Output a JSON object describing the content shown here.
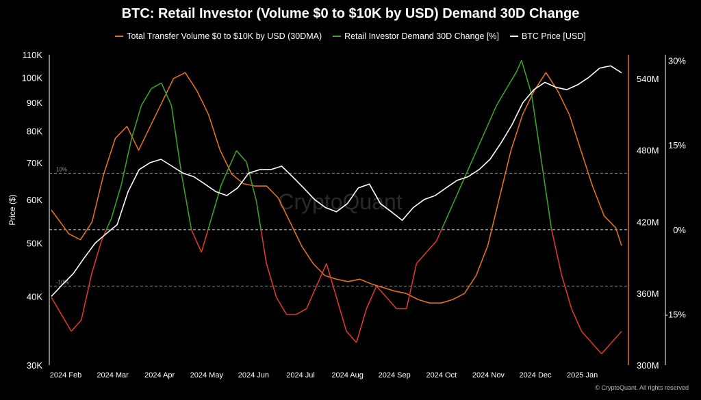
{
  "chart_data": {
    "type": "line",
    "title": "BTC: Retail Investor (Volume $0 to $10K by USD) Demand 30D Change",
    "ylabel": "Price ($)",
    "watermark": "CryptoQuant",
    "copyright": "© CryptoQuant. All rights reserved",
    "x_ticks": [
      "2024 Feb",
      "2024 Mar",
      "2024 Apr",
      "2024 May",
      "2024 Jun",
      "2024 Jul",
      "2024 Aug",
      "2024 Sep",
      "2024 Oct",
      "2024 Nov",
      "2024 Dec",
      "2025 Jan"
    ],
    "y_left_ticks": [
      "110K",
      "100K",
      "90K",
      "80K",
      "70K",
      "60K",
      "50K",
      "40K",
      "30K"
    ],
    "y_volume_ticks": [
      "540M",
      "480M",
      "420M",
      "360M",
      "300M"
    ],
    "y_right_ticks": [
      "30%",
      "15%",
      "0%",
      "-15%"
    ],
    "ref_labels": [
      "10%",
      "-10%"
    ],
    "ylim_left": [
      30000,
      110000
    ],
    "ylim_volume": [
      300000000,
      560000000
    ],
    "ylim_right": [
      -24,
      31
    ],
    "log_scale_left": true,
    "grid": false,
    "legend_position": "top-center",
    "series": [
      {
        "name": "Total Transfer Volume $0 to $10K by USD (30DMA)",
        "axis": "volume",
        "color": "#e07020",
        "values": [
          [
            0,
            430
          ],
          [
            3,
            420
          ],
          [
            6,
            410
          ],
          [
            10,
            405
          ],
          [
            14,
            420
          ],
          [
            18,
            460
          ],
          [
            22,
            490
          ],
          [
            26,
            500
          ],
          [
            30,
            480
          ],
          [
            34,
            500
          ],
          [
            38,
            520
          ],
          [
            42,
            540
          ],
          [
            46,
            545
          ],
          [
            50,
            530
          ],
          [
            54,
            510
          ],
          [
            58,
            480
          ],
          [
            62,
            460
          ],
          [
            66,
            452
          ],
          [
            70,
            450
          ],
          [
            74,
            450
          ],
          [
            78,
            440
          ],
          [
            82,
            420
          ],
          [
            86,
            400
          ],
          [
            90,
            385
          ],
          [
            94,
            375
          ],
          [
            98,
            372
          ],
          [
            102,
            370
          ],
          [
            106,
            372
          ],
          [
            110,
            368
          ],
          [
            114,
            365
          ],
          [
            118,
            362
          ],
          [
            122,
            360
          ],
          [
            126,
            355
          ],
          [
            130,
            352
          ],
          [
            134,
            352
          ],
          [
            138,
            355
          ],
          [
            142,
            360
          ],
          [
            146,
            375
          ],
          [
            150,
            400
          ],
          [
            154,
            440
          ],
          [
            158,
            480
          ],
          [
            162,
            510
          ],
          [
            166,
            530
          ],
          [
            170,
            545
          ],
          [
            174,
            530
          ],
          [
            178,
            510
          ],
          [
            182,
            480
          ],
          [
            186,
            450
          ],
          [
            190,
            425
          ],
          [
            194,
            415
          ],
          [
            196,
            400
          ]
        ]
      },
      {
        "name": "Retail Investor Demand 30D Change [%]",
        "axis": "right",
        "color_positive": "#3da02a",
        "color_negative": "#d83a2a",
        "values": [
          [
            0,
            -12
          ],
          [
            4,
            -15
          ],
          [
            8,
            -18
          ],
          [
            12,
            -16
          ],
          [
            16,
            -8
          ],
          [
            20,
            -2
          ],
          [
            24,
            2
          ],
          [
            28,
            8
          ],
          [
            32,
            16
          ],
          [
            36,
            22
          ],
          [
            40,
            25
          ],
          [
            44,
            26
          ],
          [
            48,
            22
          ],
          [
            52,
            10
          ],
          [
            56,
            0
          ],
          [
            60,
            -4
          ],
          [
            64,
            2
          ],
          [
            68,
            8
          ],
          [
            72,
            12
          ],
          [
            74,
            14
          ],
          [
            78,
            12
          ],
          [
            82,
            5
          ],
          [
            86,
            -6
          ],
          [
            90,
            -12
          ],
          [
            94,
            -15
          ],
          [
            98,
            -15
          ],
          [
            102,
            -14
          ],
          [
            106,
            -10
          ],
          [
            110,
            -6
          ],
          [
            114,
            -12
          ],
          [
            118,
            -18
          ],
          [
            122,
            -20
          ],
          [
            126,
            -14
          ],
          [
            130,
            -10
          ],
          [
            134,
            -12
          ],
          [
            138,
            -14
          ],
          [
            142,
            -14
          ],
          [
            146,
            -6
          ],
          [
            150,
            -4
          ],
          [
            154,
            -2
          ],
          [
            158,
            2
          ],
          [
            162,
            6
          ],
          [
            166,
            10
          ],
          [
            170,
            14
          ],
          [
            174,
            18
          ],
          [
            178,
            22
          ],
          [
            182,
            25
          ],
          [
            186,
            28
          ],
          [
            188,
            30
          ],
          [
            192,
            24
          ],
          [
            196,
            12
          ],
          [
            200,
            0
          ],
          [
            204,
            -8
          ],
          [
            208,
            -14
          ],
          [
            212,
            -18
          ],
          [
            216,
            -20
          ],
          [
            220,
            -22
          ],
          [
            224,
            -20
          ],
          [
            228,
            -18
          ]
        ]
      },
      {
        "name": "BTC Price [USD]",
        "axis": "left",
        "color": "#ffffff",
        "values": [
          [
            0,
            40000
          ],
          [
            3,
            42000
          ],
          [
            6,
            44000
          ],
          [
            9,
            47000
          ],
          [
            12,
            50000
          ],
          [
            15,
            52000
          ],
          [
            18,
            54000
          ],
          [
            21,
            62000
          ],
          [
            24,
            68000
          ],
          [
            27,
            70000
          ],
          [
            30,
            71000
          ],
          [
            33,
            69000
          ],
          [
            36,
            67000
          ],
          [
            39,
            66000
          ],
          [
            42,
            64000
          ],
          [
            45,
            62000
          ],
          [
            48,
            61000
          ],
          [
            51,
            63000
          ],
          [
            54,
            67000
          ],
          [
            57,
            68000
          ],
          [
            60,
            68000
          ],
          [
            63,
            69000
          ],
          [
            66,
            66000
          ],
          [
            69,
            63000
          ],
          [
            72,
            60000
          ],
          [
            75,
            58000
          ],
          [
            78,
            57000
          ],
          [
            81,
            59000
          ],
          [
            84,
            63000
          ],
          [
            87,
            64000
          ],
          [
            90,
            59000
          ],
          [
            93,
            57000
          ],
          [
            96,
            55000
          ],
          [
            99,
            58000
          ],
          [
            102,
            60000
          ],
          [
            105,
            61000
          ],
          [
            108,
            63000
          ],
          [
            111,
            65000
          ],
          [
            114,
            66000
          ],
          [
            117,
            68000
          ],
          [
            120,
            71000
          ],
          [
            123,
            76000
          ],
          [
            126,
            82000
          ],
          [
            129,
            90000
          ],
          [
            132,
            95000
          ],
          [
            135,
            98000
          ],
          [
            138,
            96000
          ],
          [
            141,
            95000
          ],
          [
            144,
            97000
          ],
          [
            147,
            100000
          ],
          [
            150,
            104000
          ],
          [
            153,
            105000
          ],
          [
            156,
            102000
          ]
        ]
      }
    ]
  }
}
